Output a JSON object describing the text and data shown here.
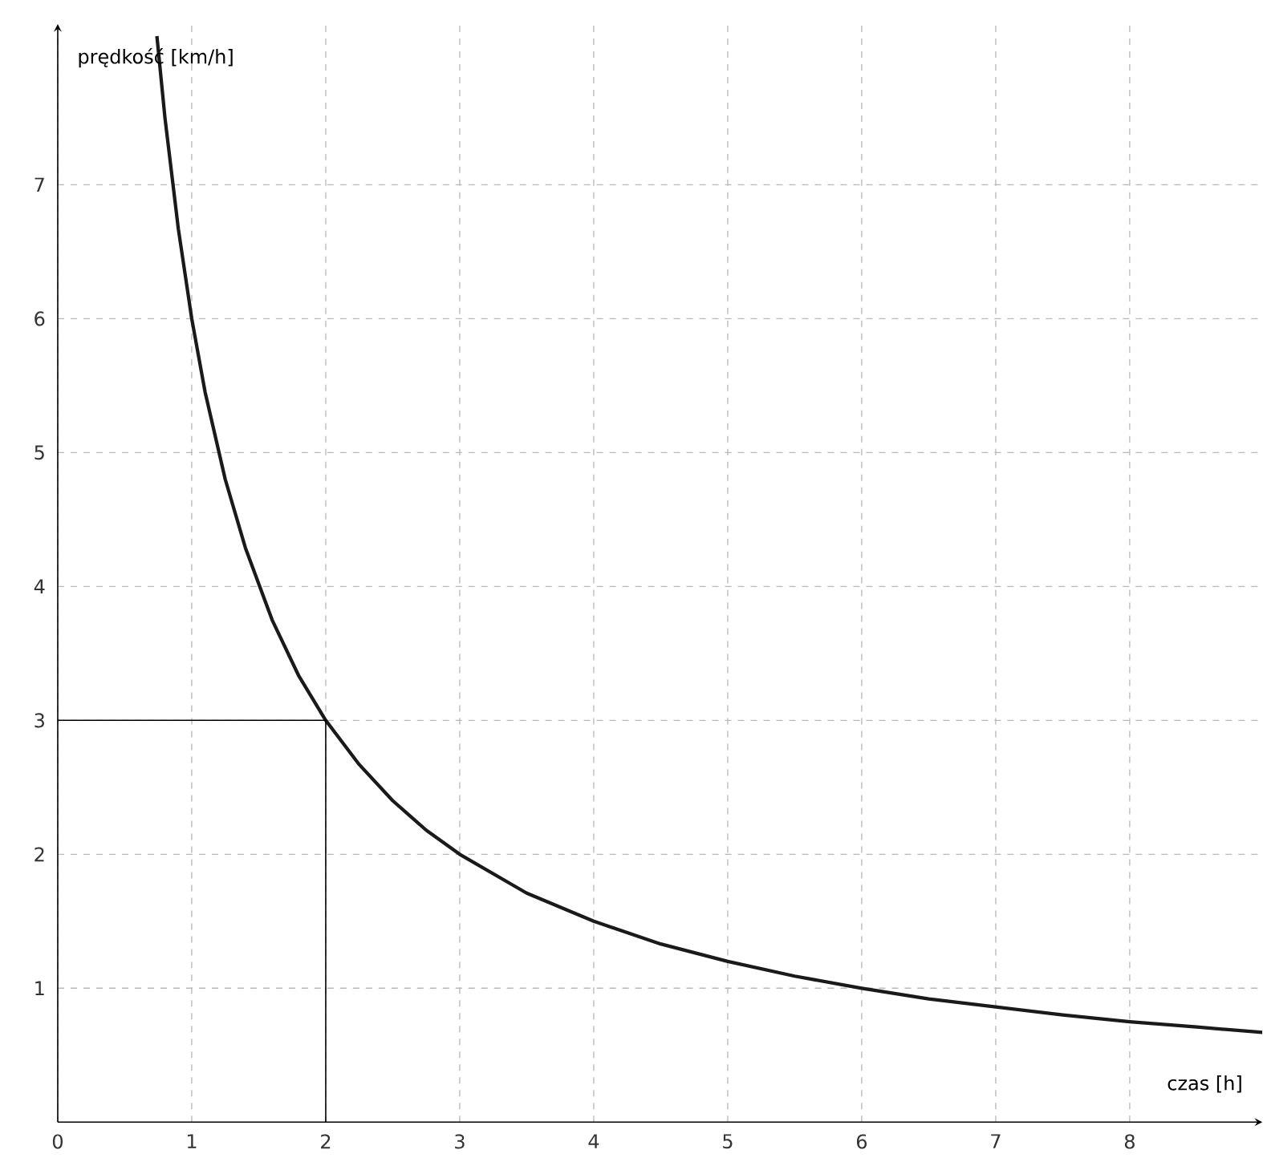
{
  "chart_data": {
    "type": "line",
    "xlabel": "czas [h]",
    "ylabel": "prędkość [km/h]",
    "xlim": [
      0,
      8.99
    ],
    "ylim": [
      0,
      8.2
    ],
    "xticks": [
      0,
      1,
      2,
      3,
      4,
      5,
      6,
      7,
      8
    ],
    "yticks": [
      1,
      2,
      3,
      4,
      5,
      6,
      7
    ],
    "grid": true,
    "series": [
      {
        "color": "#1a1a1a",
        "x": [
          0.74,
          0.8,
          0.9,
          1,
          1.1,
          1.25,
          1.4,
          1.6,
          1.8,
          2,
          2.25,
          2.5,
          2.75,
          3,
          3.5,
          4,
          4.5,
          5,
          5.5,
          6,
          6.5,
          7,
          7.5,
          8,
          8.5,
          8.99
        ],
        "values": [
          8.11,
          7.5,
          6.67,
          6,
          5.45,
          4.8,
          4.29,
          3.75,
          3.33,
          3,
          2.67,
          2.4,
          2.18,
          2,
          1.71,
          1.5,
          1.33,
          1.2,
          1.09,
          1,
          0.92,
          0.86,
          0.8,
          0.75,
          0.71,
          0.67
        ]
      },
      {
        "color": "#000000",
        "x": [
          0,
          2,
          2
        ],
        "values": [
          3,
          3,
          0
        ]
      }
    ]
  }
}
